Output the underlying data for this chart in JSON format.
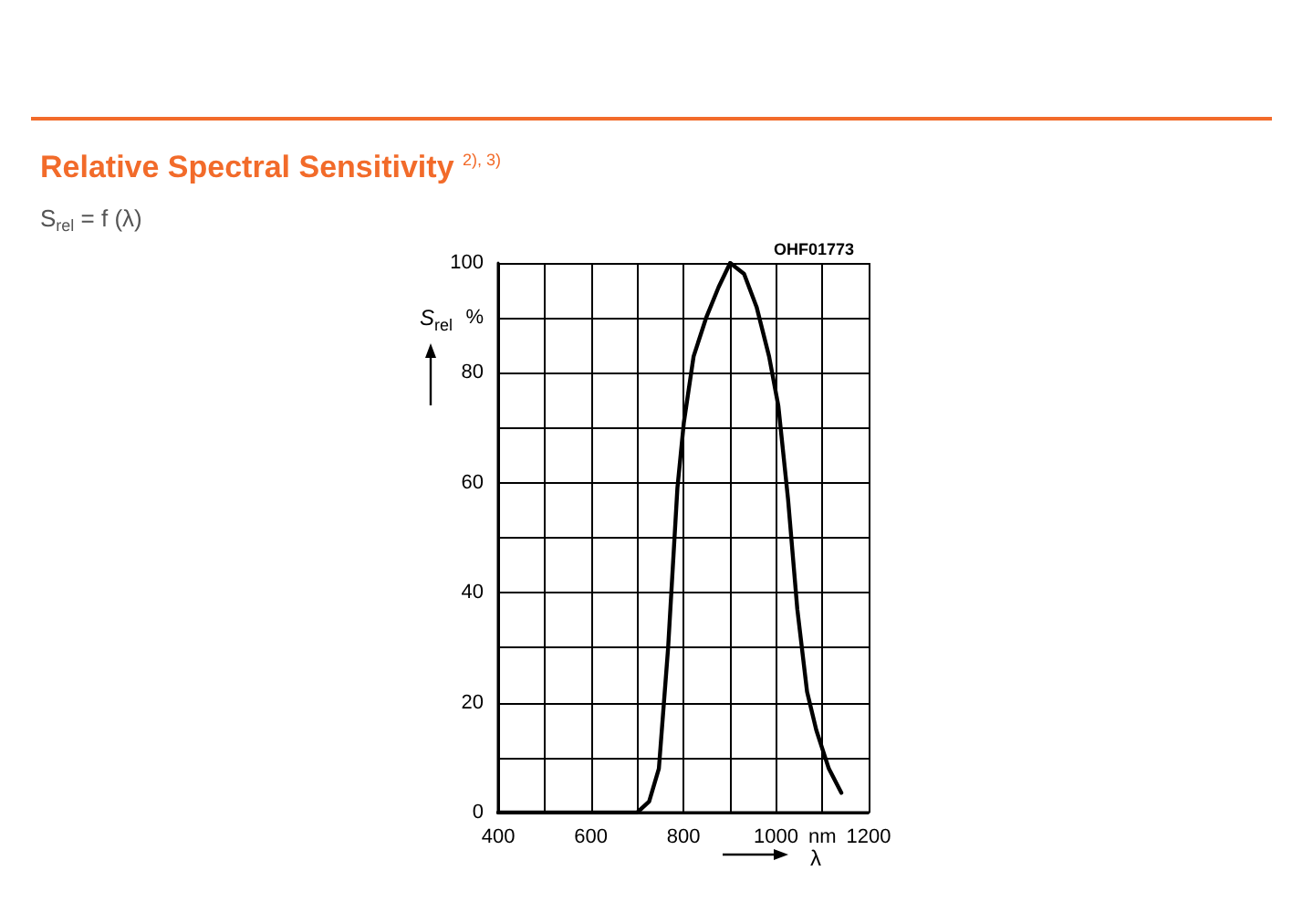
{
  "chart_data": {
    "type": "line",
    "title": "Relative Spectral Sensitivity $^{2), 3)}$",
    "subtitle": "S$_{rel}$ = f (λ)",
    "xlabel": "λ",
    "ylabel": "S$_{rel}$",
    "annotations": [
      "OHF01773"
    ],
    "x": [
      400,
      500,
      600,
      700,
      726,
      747,
      767,
      787,
      801,
      822,
      849,
      876,
      901,
      931,
      958,
      985,
      1005,
      1026,
      1046,
      1067,
      1087,
      1114,
      1141
    ],
    "series": [
      {
        "color": "#000000",
        "values": [
          0,
          0,
          0,
          0,
          2,
          8,
          30,
          59,
          71,
          83,
          90,
          95.6,
          100,
          98,
          92,
          83,
          74,
          57,
          37,
          22,
          15,
          8,
          3.6
        ]
      }
    ],
    "xlim": [
      400,
      1200
    ],
    "xticks": [
      400,
      {
        "value": 500,
        "label": null
      },
      600,
      {
        "value": 700,
        "label": null
      },
      800,
      {
        "value": 900,
        "label": null
      },
      1000,
      {
        "value": 1100,
        "label": "nm"
      },
      1200
    ],
    "ylim": [
      0,
      100
    ],
    "yticks": [
      0,
      {
        "value": 10,
        "label": null
      },
      20,
      {
        "value": 30,
        "label": null
      },
      40,
      {
        "value": 50,
        "label": null
      },
      60,
      {
        "value": 70,
        "label": null
      },
      80,
      {
        "value": 90,
        "label": "%"
      },
      100
    ],
    "grid": true,
    "marker": "none",
    "line_style": "solid"
  }
}
